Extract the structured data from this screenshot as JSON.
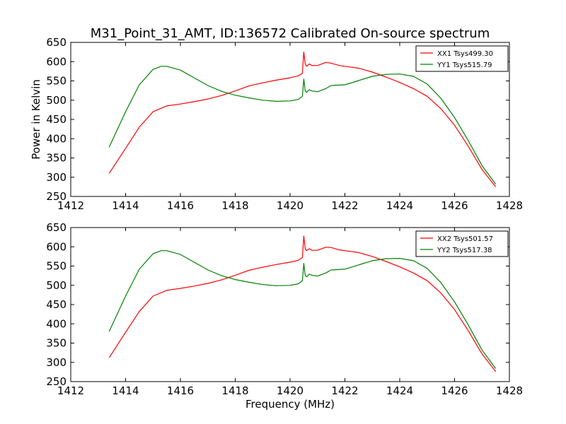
{
  "title": "M31_Point_31_AMT, ID:136572 Calibrated On-source spectrum",
  "chart_data": [
    {
      "type": "line",
      "title": "M31_Point_31_AMT, ID:136572 Calibrated On-source spectrum",
      "xlabel": "",
      "ylabel": "Power in Kelvin",
      "xlim": [
        1412,
        1428
      ],
      "ylim": [
        250,
        650
      ],
      "xticks": [
        1412,
        1414,
        1416,
        1418,
        1420,
        1422,
        1424,
        1426,
        1428
      ],
      "yticks": [
        250,
        300,
        350,
        400,
        450,
        500,
        550,
        600,
        650
      ],
      "grid": false,
      "legend": "top-right",
      "series": [
        {
          "name": "XX1 Tsys499.30",
          "color": "#ff0000",
          "x": [
            1413.4,
            1414.0,
            1414.5,
            1415.0,
            1415.5,
            1416.0,
            1416.5,
            1417.0,
            1417.5,
            1418.0,
            1418.5,
            1419.0,
            1419.5,
            1420.0,
            1420.3,
            1420.45,
            1420.5,
            1420.55,
            1420.6,
            1420.7,
            1420.8,
            1421.0,
            1421.3,
            1421.5,
            1421.8,
            1422.0,
            1422.5,
            1423.0,
            1423.5,
            1424.0,
            1424.5,
            1425.0,
            1425.5,
            1426.0,
            1426.5,
            1427.0,
            1427.5
          ],
          "y": [
            310,
            375,
            430,
            470,
            485,
            490,
            496,
            503,
            512,
            524,
            537,
            545,
            552,
            558,
            563,
            570,
            625,
            595,
            588,
            594,
            590,
            590,
            598,
            596,
            590,
            588,
            583,
            573,
            560,
            546,
            530,
            510,
            478,
            435,
            380,
            320,
            275
          ]
        },
        {
          "name": "YY1 Tsys515.79",
          "color": "#008000",
          "x": [
            1413.4,
            1414.0,
            1414.5,
            1415.0,
            1415.3,
            1415.5,
            1416.0,
            1416.5,
            1417.0,
            1417.5,
            1418.0,
            1418.5,
            1419.0,
            1419.5,
            1420.0,
            1420.3,
            1420.45,
            1420.5,
            1420.55,
            1420.6,
            1420.7,
            1420.8,
            1421.0,
            1421.3,
            1421.5,
            1422.0,
            1422.5,
            1423.0,
            1423.5,
            1424.0,
            1424.5,
            1425.0,
            1425.5,
            1426.0,
            1426.5,
            1427.0,
            1427.5
          ],
          "y": [
            378,
            470,
            540,
            580,
            588,
            588,
            578,
            558,
            538,
            523,
            513,
            506,
            500,
            497,
            498,
            502,
            510,
            555,
            525,
            520,
            527,
            524,
            522,
            530,
            538,
            540,
            551,
            562,
            567,
            568,
            562,
            542,
            505,
            455,
            395,
            330,
            282
          ]
        }
      ]
    },
    {
      "type": "line",
      "title": "",
      "xlabel": "Frequency (MHz)",
      "ylabel": "",
      "xlim": [
        1412,
        1428
      ],
      "ylim": [
        250,
        650
      ],
      "xticks": [
        1412,
        1414,
        1416,
        1418,
        1420,
        1422,
        1424,
        1426,
        1428
      ],
      "yticks": [
        250,
        300,
        350,
        400,
        450,
        500,
        550,
        600,
        650
      ],
      "grid": false,
      "legend": "top-right",
      "series": [
        {
          "name": "XX2 Tsys501.57",
          "color": "#ff0000",
          "x": [
            1413.4,
            1414.0,
            1414.5,
            1415.0,
            1415.5,
            1416.0,
            1416.5,
            1417.0,
            1417.5,
            1418.0,
            1418.5,
            1419.0,
            1419.5,
            1420.0,
            1420.3,
            1420.45,
            1420.5,
            1420.55,
            1420.6,
            1420.7,
            1420.8,
            1421.0,
            1421.3,
            1421.5,
            1421.8,
            1422.0,
            1422.5,
            1423.0,
            1423.5,
            1424.0,
            1424.5,
            1425.0,
            1425.5,
            1426.0,
            1426.5,
            1427.0,
            1427.5
          ],
          "y": [
            312,
            378,
            432,
            472,
            487,
            492,
            498,
            505,
            514,
            526,
            539,
            547,
            554,
            560,
            565,
            572,
            628,
            596,
            590,
            595,
            591,
            591,
            599,
            598,
            592,
            590,
            585,
            575,
            562,
            548,
            532,
            512,
            480,
            437,
            382,
            322,
            276
          ]
        },
        {
          "name": "YY2 Tsys517.38",
          "color": "#008000",
          "x": [
            1413.4,
            1414.0,
            1414.5,
            1415.0,
            1415.3,
            1415.5,
            1416.0,
            1416.5,
            1417.0,
            1417.5,
            1418.0,
            1418.5,
            1419.0,
            1419.5,
            1420.0,
            1420.3,
            1420.45,
            1420.5,
            1420.55,
            1420.6,
            1420.7,
            1420.8,
            1421.0,
            1421.3,
            1421.5,
            1422.0,
            1422.5,
            1423.0,
            1423.5,
            1424.0,
            1424.5,
            1425.0,
            1425.5,
            1426.0,
            1426.5,
            1427.0,
            1427.5
          ],
          "y": [
            380,
            472,
            542,
            582,
            590,
            590,
            580,
            560,
            540,
            525,
            515,
            508,
            502,
            499,
            500,
            504,
            512,
            557,
            527,
            522,
            529,
            526,
            524,
            532,
            540,
            542,
            553,
            564,
            569,
            570,
            564,
            544,
            507,
            457,
            397,
            332,
            284
          ]
        }
      ]
    }
  ]
}
